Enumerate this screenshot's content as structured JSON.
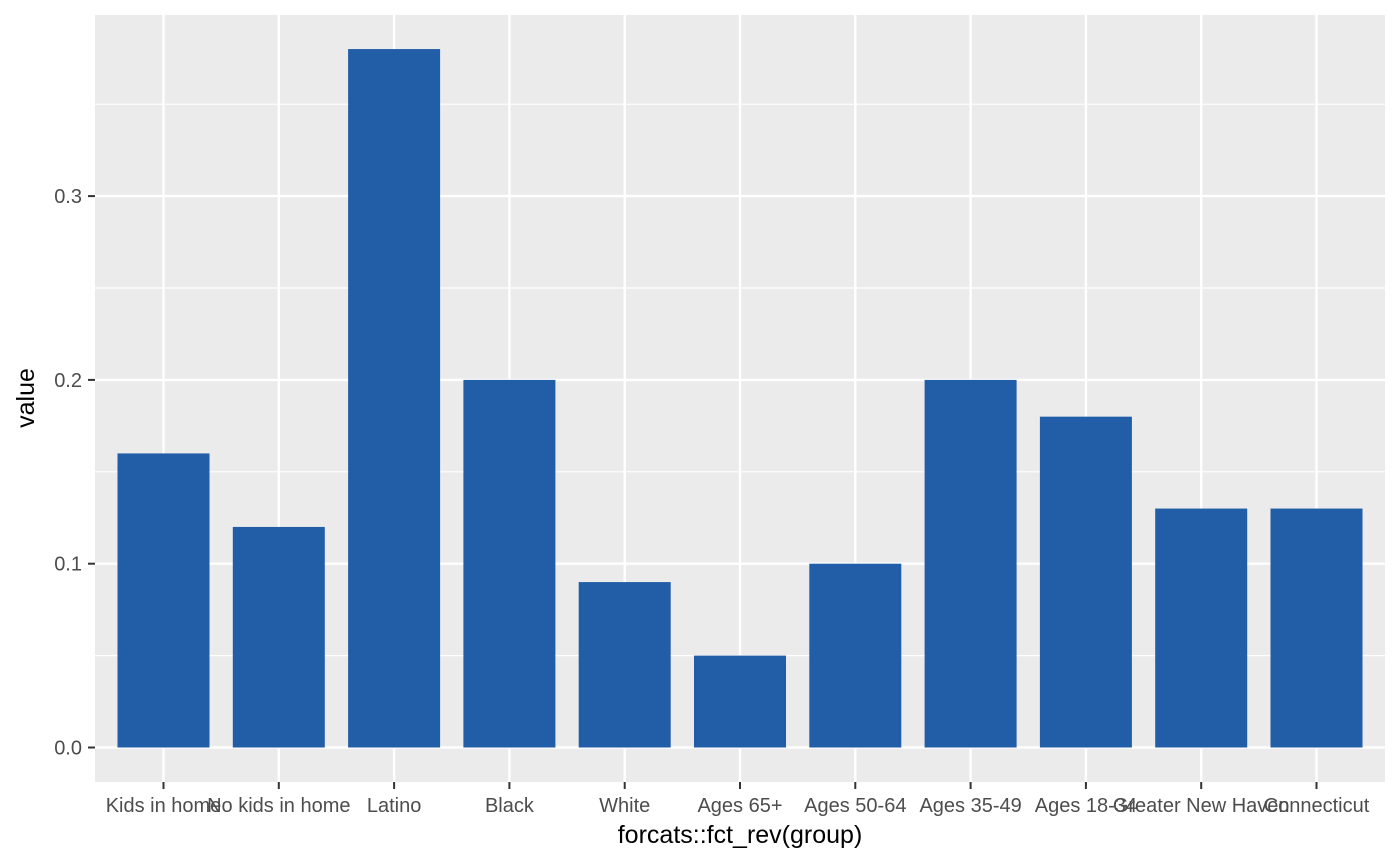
{
  "chart_data": {
    "type": "bar",
    "title": "",
    "xlabel": "forcats::fct_rev(group)",
    "ylabel": "value",
    "categories": [
      "Kids in home",
      "No kids in home",
      "Latino",
      "Black",
      "White",
      "Ages 65+",
      "Ages 50-64",
      "Ages 35-49",
      "Ages 18-34",
      "Greater New Haven",
      "Connecticut"
    ],
    "values": [
      0.16,
      0.12,
      0.38,
      0.2,
      0.09,
      0.05,
      0.1,
      0.2,
      0.18,
      0.13,
      0.13
    ],
    "y_ticks": [
      "0.0",
      "0.1",
      "0.2",
      "0.3"
    ],
    "ylim": [
      0,
      0.38
    ],
    "grid": true,
    "legend": "none",
    "colors": {
      "bar": "#225ea8",
      "panel": "#ebebeb",
      "grid": "#ffffff"
    }
  }
}
